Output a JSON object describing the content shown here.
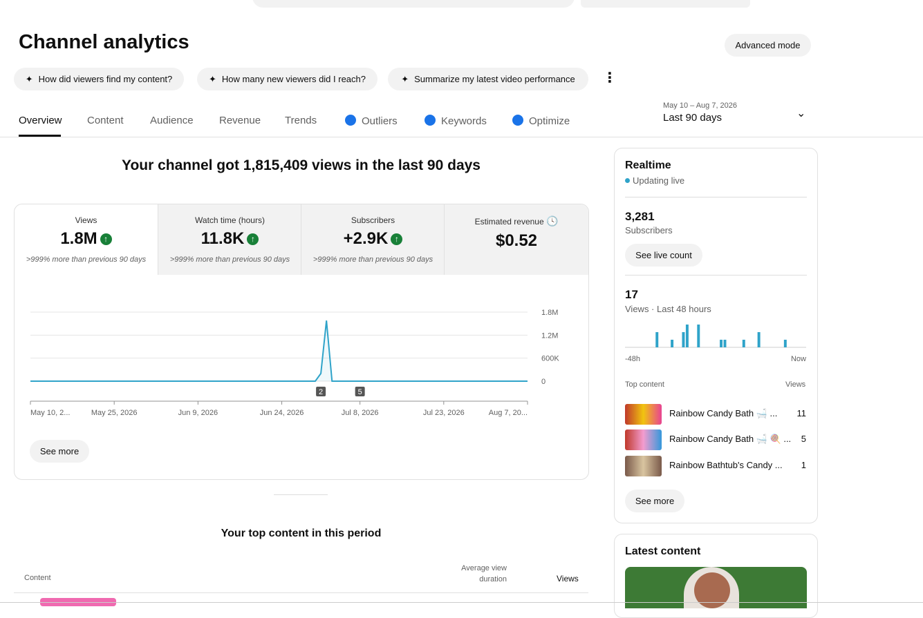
{
  "header": {
    "title": "Channel analytics",
    "advanced_mode": "Advanced mode"
  },
  "suggestions": [
    "How did viewers find my content?",
    "How many new viewers did I reach?",
    "Summarize my latest video performance"
  ],
  "tabs": [
    "Overview",
    "Content",
    "Audience",
    "Revenue",
    "Trends",
    "Outliers",
    "Keywords",
    "Optimize"
  ],
  "date_range": {
    "dates": "May 10 – Aug 7, 2026",
    "period": "Last 90 days"
  },
  "headline": "Your channel got 1,815,409 views in the last 90 days",
  "metrics": [
    {
      "label": "Views",
      "value": "1.8M",
      "note": ">999% more than previous 90 days"
    },
    {
      "label": "Watch time (hours)",
      "value": "11.8K",
      "note": ">999% more than previous 90 days"
    },
    {
      "label": "Subscribers",
      "value": "+2.9K",
      "note": ">999% more than previous 90 days"
    },
    {
      "label": "Estimated revenue",
      "value": "$0.52"
    }
  ],
  "chart_data": {
    "type": "line",
    "color": "#2fa3c9",
    "x": [
      "May 10, 2026",
      "Jun 30, 2026",
      "Jul 1, 2026",
      "Jul 2, 2026",
      "Jul 3, 2026",
      "Aug 7, 2026"
    ],
    "values": [
      0,
      0,
      200000,
      1580000,
      0,
      0
    ],
    "xlim": [
      "May 10, 2026",
      "Aug 7, 2026"
    ],
    "xticks": [
      {
        "value": "May 10, 2026",
        "label": "May 10, 2..."
      },
      "May 25, 2026",
      "Jun 9, 2026",
      "Jun 24, 2026",
      "Jul 8, 2026",
      "Jul 23, 2026",
      {
        "value": "Aug 7, 2026",
        "label": "Aug 7, 20..."
      }
    ],
    "ylim": [
      0,
      1800000
    ],
    "yticks": [
      0,
      {
        "value": 600000,
        "label": "600K"
      },
      {
        "value": 1200000,
        "label": "1.2M"
      },
      {
        "value": 1800000,
        "label": "1.8M"
      }
    ],
    "grid": true,
    "annotations": [
      {
        "x": "Jul 1, 2026",
        "label": "2"
      },
      {
        "x": "Jul 8, 2026",
        "label": "5"
      }
    ]
  },
  "see_more": "See more",
  "realtime": {
    "title": "Realtime",
    "status": "Updating live",
    "subscribers": "3,281",
    "subscribers_label": "Subscribers",
    "live_count_button": "See live count",
    "views": "17",
    "views_label": "Views · Last 48 hours",
    "chart": {
      "type": "bar",
      "color": "#2fa3c9",
      "ylim": [
        0,
        3
      ],
      "start_label": "-48h",
      "end_label": "Now",
      "values": [
        0,
        0,
        0,
        0,
        0,
        0,
        0,
        0,
        2,
        0,
        0,
        0,
        1,
        0,
        0,
        2,
        3,
        0,
        0,
        3,
        0,
        0,
        0,
        0,
        0,
        1,
        1,
        0,
        0,
        0,
        0,
        1,
        0,
        0,
        0,
        2,
        0,
        0,
        0,
        0,
        0,
        0,
        1,
        0,
        0,
        0,
        0,
        0
      ]
    },
    "top_content_label": "Top content",
    "views_column": "Views",
    "top_content": [
      {
        "title": "Rainbow Candy Bath 🛁 ...",
        "views": 11
      },
      {
        "title": "Rainbow Candy Bath 🛁 🍭 ...",
        "views": 5
      },
      {
        "title": "Rainbow Bathtub's Candy ...",
        "views": 1
      }
    ],
    "see_more": "See more"
  },
  "latest_content": {
    "title": "Latest content"
  },
  "top_content_section": {
    "title": "Your top content in this period",
    "columns": [
      "Content",
      "Average view duration",
      "Views"
    ]
  }
}
